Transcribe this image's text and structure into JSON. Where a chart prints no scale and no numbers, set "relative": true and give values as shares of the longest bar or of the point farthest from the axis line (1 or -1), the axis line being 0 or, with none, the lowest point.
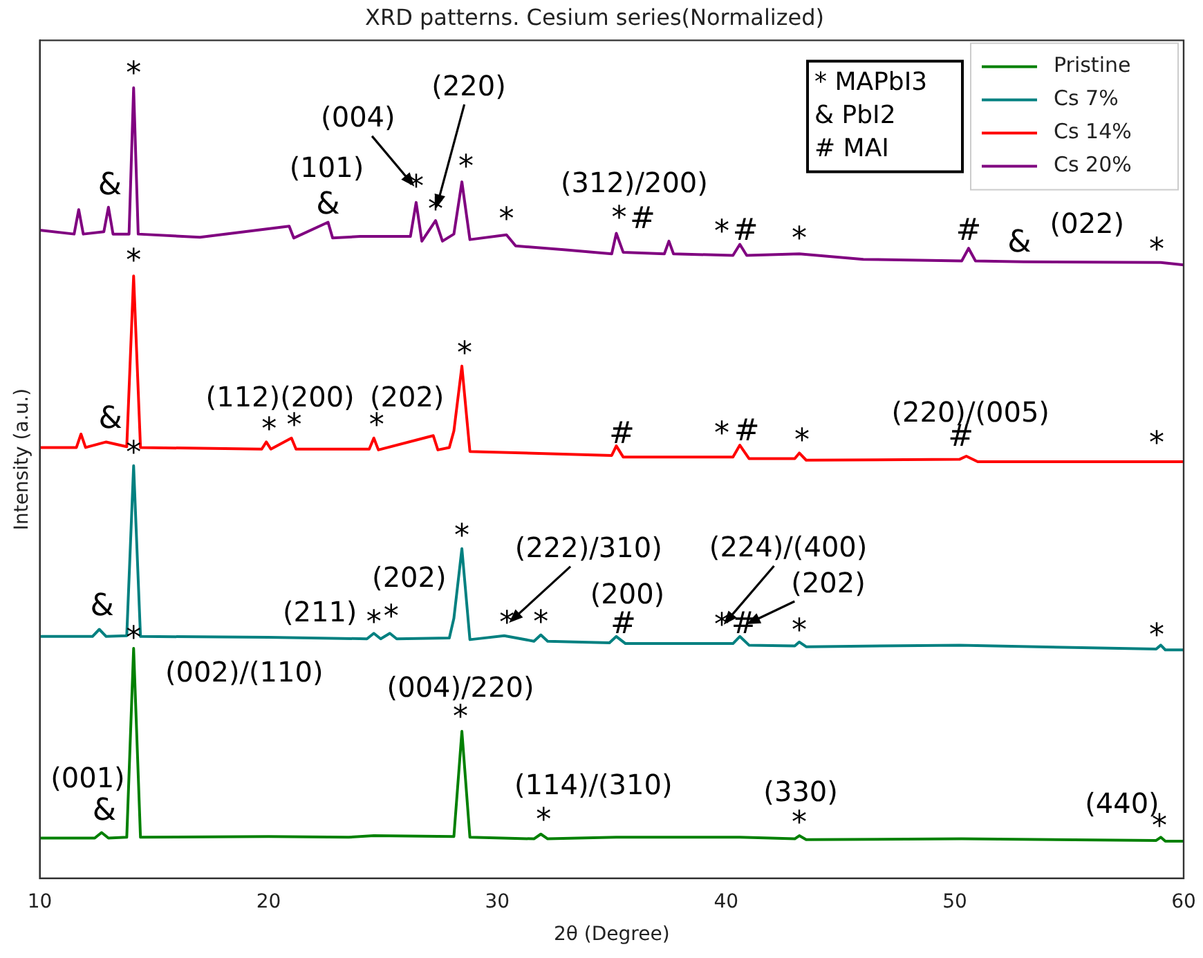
{
  "chart_data": {
    "type": "line",
    "title": "XRD patterns. Cesium series(Normalized)",
    "xlabel": "2θ (Degree)",
    "ylabel": "Intensity (a.u.)",
    "relative": true,
    "xlim": [
      10,
      60
    ],
    "xticks": [
      10,
      20,
      30,
      40,
      50,
      60
    ],
    "grid": false,
    "legend": "top right",
    "marker": "none",
    "line_style": "solid",
    "series": [
      {
        "name": "Pristine",
        "color": "#008000",
        "x": [
          10,
          12.4,
          12.7,
          13.0,
          13.8,
          14.1,
          14.4,
          20,
          23.5,
          24.6,
          28.1,
          28.45,
          28.8,
          31.6,
          31.9,
          32.2,
          35.2,
          40.6,
          43.0,
          43.2,
          43.5,
          50.3,
          58.8,
          59.0,
          59.2,
          60
        ],
        "values": [
          0.051,
          0.051,
          0.058,
          0.051,
          0.052,
          0.291,
          0.052,
          0.053,
          0.052,
          0.054,
          0.053,
          0.186,
          0.052,
          0.05,
          0.056,
          0.05,
          0.052,
          0.052,
          0.05,
          0.054,
          0.049,
          0.05,
          0.048,
          0.052,
          0.047,
          0.047
        ]
      },
      {
        "name": "Cs 7%",
        "color": "#008080",
        "x": [
          10,
          12.3,
          12.6,
          12.9,
          13.8,
          14.1,
          14.4,
          20,
          24.3,
          24.6,
          24.9,
          25.3,
          25.6,
          27.9,
          28.1,
          28.45,
          28.8,
          30.3,
          31.6,
          31.9,
          32.2,
          34.9,
          35.2,
          35.6,
          39,
          40.3,
          40.6,
          41,
          43.0,
          43.2,
          43.5,
          50.2,
          58.8,
          59,
          59.2,
          60
        ],
        "values": [
          0.306,
          0.306,
          0.315,
          0.306,
          0.307,
          0.522,
          0.306,
          0.305,
          0.303,
          0.31,
          0.303,
          0.31,
          0.303,
          0.304,
          0.329,
          0.417,
          0.302,
          0.307,
          0.3,
          0.308,
          0.3,
          0.298,
          0.306,
          0.297,
          0.297,
          0.297,
          0.306,
          0.295,
          0.294,
          0.299,
          0.293,
          0.295,
          0.29,
          0.295,
          0.289,
          0.289
        ]
      },
      {
        "name": "Cs 14%",
        "color": "#ff0000",
        "x": [
          10,
          11.6,
          11.8,
          12.0,
          12.9,
          13.8,
          14.1,
          14.4,
          19.7,
          19.9,
          20.1,
          21,
          21.2,
          24.4,
          24.6,
          24.8,
          27.2,
          27.4,
          27.9,
          28.1,
          28.45,
          28.8,
          35.0,
          35.2,
          35.5,
          40.3,
          40.6,
          41,
          43.0,
          43.2,
          43.5,
          50.2,
          50.5,
          51,
          59,
          60
        ],
        "values": [
          0.545,
          0.545,
          0.562,
          0.545,
          0.552,
          0.546,
          0.762,
          0.545,
          0.543,
          0.552,
          0.543,
          0.557,
          0.543,
          0.543,
          0.557,
          0.542,
          0.56,
          0.542,
          0.545,
          0.566,
          0.648,
          0.54,
          0.535,
          0.547,
          0.533,
          0.533,
          0.548,
          0.531,
          0.531,
          0.538,
          0.529,
          0.53,
          0.534,
          0.527,
          0.527,
          0.527
        ]
      },
      {
        "name": "Cs 20%",
        "color": "#800080",
        "x": [
          10,
          11.5,
          11.7,
          11.9,
          12.8,
          13.0,
          13.2,
          13.9,
          14.1,
          14.3,
          17,
          20.9,
          21.1,
          22.6,
          22.8,
          24,
          26.2,
          26.45,
          26.7,
          27.3,
          27.6,
          28.1,
          28.45,
          28.8,
          30.4,
          30.8,
          33,
          35.0,
          35.2,
          35.5,
          37.3,
          37.5,
          37.7,
          40.3,
          40.6,
          40.9,
          43.2,
          46,
          50.3,
          50.6,
          50.9,
          53,
          59,
          60
        ],
        "values": [
          0.82,
          0.815,
          0.846,
          0.815,
          0.818,
          0.849,
          0.815,
          0.815,
          1,
          0.815,
          0.811,
          0.825,
          0.81,
          0.83,
          0.81,
          0.812,
          0.812,
          0.855,
          0.806,
          0.832,
          0.806,
          0.815,
          0.881,
          0.808,
          0.814,
          0.8,
          0.795,
          0.79,
          0.816,
          0.792,
          0.79,
          0.806,
          0.79,
          0.788,
          0.802,
          0.788,
          0.79,
          0.783,
          0.781,
          0.797,
          0.781,
          0.78,
          0.779,
          0.776
        ]
      }
    ],
    "annotations": [
      "* MAPbI3",
      "& PbI2",
      "# MAI",
      {
        "text": "*",
        "x": 14.1,
        "y": 1
      },
      {
        "text": "&",
        "x": 13.0,
        "y": 0.849
      },
      {
        "text": "(101)",
        "x": 22.6,
        "y": 0.83
      },
      {
        "text": "&",
        "x": 22.6,
        "y": 0.83
      },
      {
        "text": "(004)",
        "x": 26.45,
        "y": 0.855
      },
      {
        "text": "(220)",
        "x": 28.45,
        "y": 0.881
      },
      {
        "text": "*",
        "x": 26.45,
        "y": 0.855
      },
      {
        "text": "*",
        "x": 27.3,
        "y": 0.832
      },
      {
        "text": "*",
        "x": 28.45,
        "y": 0.881
      },
      {
        "text": "*",
        "x": 30.4,
        "y": 0.814
      },
      {
        "text": "(312)/200)",
        "x": 35.2,
        "y": 0.816
      },
      {
        "text": "*",
        "x": 35.2,
        "y": 0.816
      },
      {
        "text": "#",
        "x": 37.5,
        "y": 0.806
      },
      {
        "text": "*",
        "x": 40.6,
        "y": 0.802
      },
      {
        "text": "#",
        "x": 40.6,
        "y": 0.802
      },
      {
        "text": "*",
        "x": 43.2,
        "y": 0.79
      },
      {
        "text": "#",
        "x": 50.6,
        "y": 0.797
      },
      {
        "text": "&",
        "x": 53,
        "y": 0.78
      },
      {
        "text": "(022)",
        "x": 53,
        "y": 0.78
      },
      {
        "text": "*",
        "x": 59,
        "y": 0.779
      },
      {
        "text": "*",
        "x": 14.1,
        "y": 0.762
      },
      {
        "text": "&",
        "x": 12.9,
        "y": 0.552
      },
      {
        "text": "(112)(200)",
        "x": 19.9,
        "y": 0.552
      },
      {
        "text": "*",
        "x": 19.9,
        "y": 0.552
      },
      {
        "text": "*",
        "x": 21,
        "y": 0.557
      },
      {
        "text": "(202)",
        "x": 24.6,
        "y": 0.557
      },
      {
        "text": "*",
        "x": 24.6,
        "y": 0.557
      },
      {
        "text": "*",
        "x": 28.45,
        "y": 0.648
      },
      {
        "text": "#",
        "x": 35.2,
        "y": 0.547
      },
      {
        "text": "*",
        "x": 40.6,
        "y": 0.548
      },
      {
        "text": "#",
        "x": 40.6,
        "y": 0.548
      },
      {
        "text": "*",
        "x": 43.2,
        "y": 0.538
      },
      {
        "text": "(220)/(005)",
        "x": 50.5,
        "y": 0.534
      },
      {
        "text": "#",
        "x": 50.5,
        "y": 0.534
      },
      {
        "text": "*",
        "x": 59,
        "y": 0.527
      },
      {
        "text": "*",
        "x": 14.1,
        "y": 0.522
      },
      {
        "text": "&",
        "x": 12.6,
        "y": 0.315
      },
      {
        "text": "(211)",
        "x": 24.6,
        "y": 0.31
      },
      {
        "text": "*",
        "x": 24.6,
        "y": 0.31
      },
      {
        "text": "*",
        "x": 25.3,
        "y": 0.31
      },
      {
        "text": "(202)",
        "x": 25.3,
        "y": 0.31
      },
      {
        "text": "*",
        "x": 28.45,
        "y": 0.417
      },
      {
        "text": "(222)/310)",
        "x": 30.3,
        "y": 0.307
      },
      {
        "text": "*",
        "x": 30.3,
        "y": 0.307
      },
      {
        "text": "*",
        "x": 31.9,
        "y": 0.308
      },
      {
        "text": "(200)",
        "x": 35.2,
        "y": 0.306
      },
      {
        "text": "#",
        "x": 35.2,
        "y": 0.306
      },
      {
        "text": "(224)/(400)",
        "x": 40.6,
        "y": 0.306
      },
      {
        "text": "(202)",
        "x": 40.6,
        "y": 0.306
      },
      {
        "text": "*",
        "x": 40.6,
        "y": 0.306
      },
      {
        "text": "#",
        "x": 40.6,
        "y": 0.306
      },
      {
        "text": "*",
        "x": 43.2,
        "y": 0.299
      },
      {
        "text": "*",
        "x": 59,
        "y": 0.295
      },
      {
        "text": "*",
        "x": 14.1,
        "y": 0.291
      },
      {
        "text": "(002)/(110)",
        "x": 14.1,
        "y": 0.291
      },
      {
        "text": "(001)",
        "x": 12.7,
        "y": 0.058
      },
      {
        "text": "&",
        "x": 12.7,
        "y": 0.058
      },
      {
        "text": "(004)/220)",
        "x": 28.45,
        "y": 0.186
      },
      {
        "text": "*",
        "x": 28.45,
        "y": 0.186
      },
      {
        "text": "(114)/(310)",
        "x": 31.9,
        "y": 0.056
      },
      {
        "text": "*",
        "x": 31.9,
        "y": 0.056
      },
      {
        "text": "(330)",
        "x": 43.2,
        "y": 0.054
      },
      {
        "text": "*",
        "x": 43.2,
        "y": 0.054
      },
      {
        "text": "(440)",
        "x": 59,
        "y": 0.052
      },
      {
        "text": "*",
        "x": 59,
        "y": 0.052
      }
    ]
  }
}
